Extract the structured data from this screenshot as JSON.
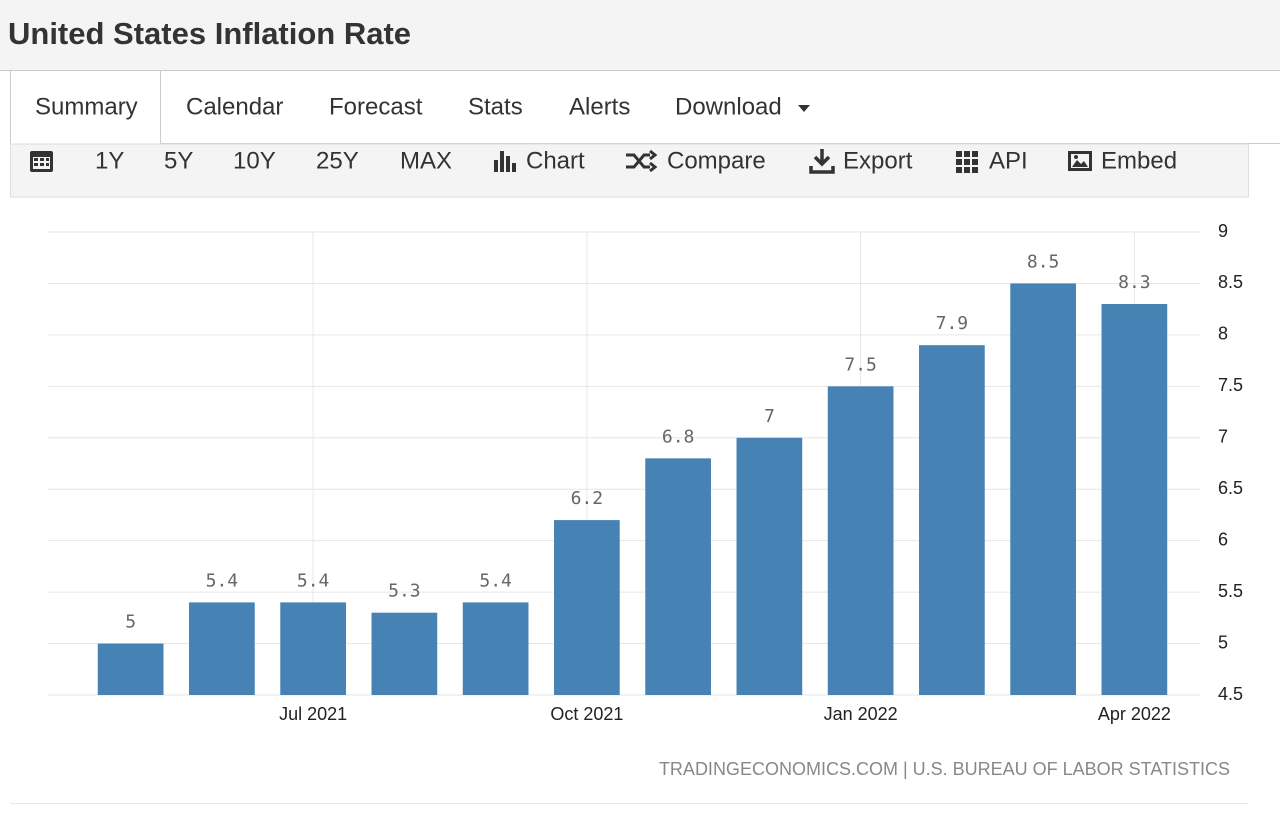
{
  "header": {
    "title": "United States Inflation Rate"
  },
  "tabs": [
    "Summary",
    "Calendar",
    "Forecast",
    "Stats",
    "Alerts",
    "Download"
  ],
  "toolbar": [
    "1Y",
    "5Y",
    "10Y",
    "25Y",
    "MAX",
    "Chart",
    "Compare",
    "Export",
    "API",
    "Embed"
  ],
  "chart_data": {
    "type": "bar",
    "categories": [
      null,
      null,
      "Jul 2021",
      null,
      null,
      "Oct 2021",
      null,
      null,
      "Jan 2022",
      null,
      null,
      "Apr 2022"
    ],
    "values": [
      5,
      5.4,
      5.4,
      5.3,
      5.4,
      6.2,
      6.8,
      7,
      7.5,
      7.9,
      8.5,
      8.3
    ],
    "color": "#4682b4",
    "ylim": [
      4.5,
      9
    ],
    "yticks": [
      4.5,
      5,
      5.5,
      6,
      6.5,
      7,
      7.5,
      8,
      8.5,
      9
    ],
    "grid": true,
    "source": "TRADINGECONOMICS.COM | U.S. BUREAU OF LABOR STATISTICS"
  }
}
